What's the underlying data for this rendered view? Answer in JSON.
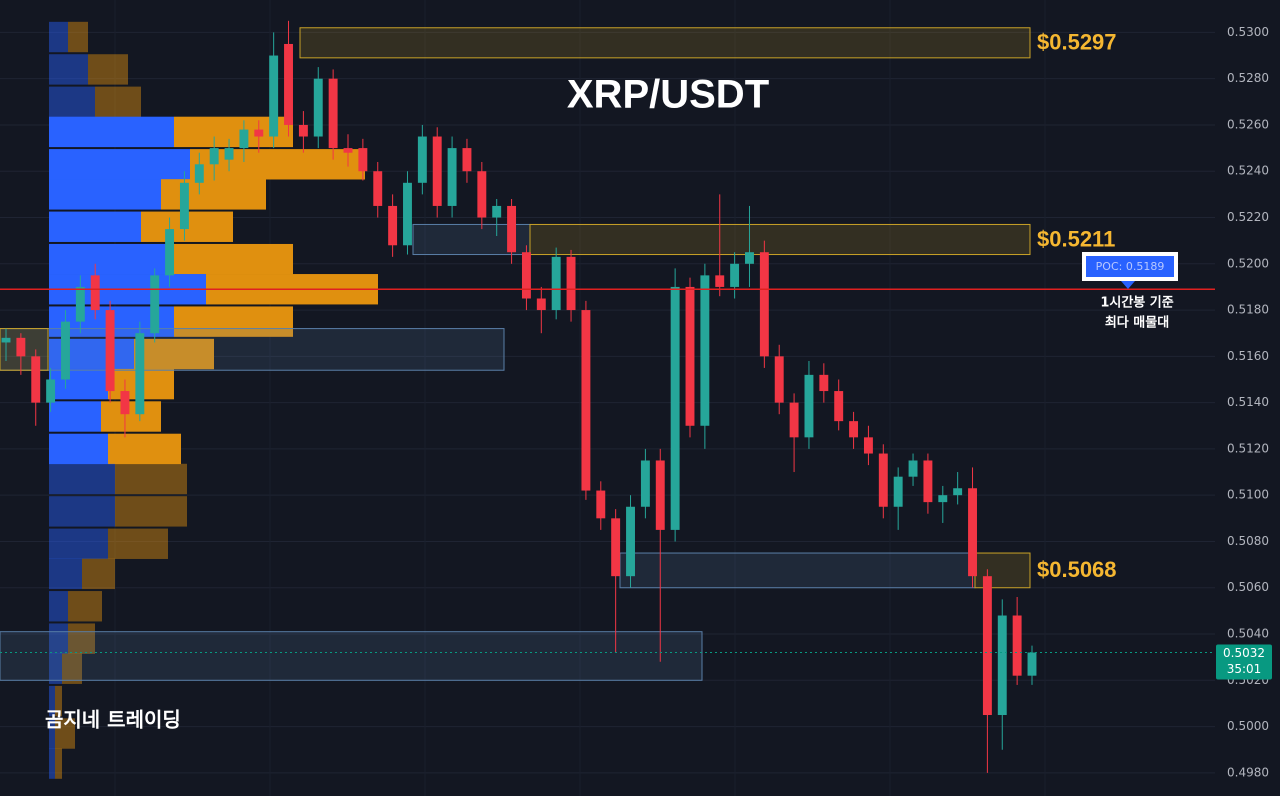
{
  "chart_data": {
    "type": "candlestick",
    "title": "XRP/USDT",
    "watermark": "곰지네 트레이딩",
    "up_color": "#26a69a",
    "down_color": "#f23645",
    "ylim": [
      0.497,
      0.5314
    ],
    "yticks": [
      {
        "value": 0.498,
        "label": "0.4980"
      },
      {
        "value": 0.5,
        "label": "0.5000"
      },
      {
        "value": 0.502,
        "label": "0.5020"
      },
      {
        "value": 0.504,
        "label": "0.5040"
      },
      {
        "value": 0.506,
        "label": "0.5060"
      },
      {
        "value": 0.508,
        "label": "0.5080"
      },
      {
        "value": 0.51,
        "label": "0.5100"
      },
      {
        "value": 0.512,
        "label": "0.5120"
      },
      {
        "value": 0.514,
        "label": "0.5140"
      },
      {
        "value": 0.516,
        "label": "0.5160"
      },
      {
        "value": 0.518,
        "label": "0.5180"
      },
      {
        "value": 0.52,
        "label": "0.5200"
      },
      {
        "value": 0.522,
        "label": "0.5220"
      },
      {
        "value": 0.524,
        "label": "0.5240"
      },
      {
        "value": 0.526,
        "label": "0.5260"
      },
      {
        "value": 0.528,
        "label": "0.5280"
      },
      {
        "value": 0.53,
        "label": "0.5300"
      }
    ],
    "grid": true,
    "candles": [
      [
        0.5166,
        0.5172,
        0.5158,
        0.5168
      ],
      [
        0.5168,
        0.517,
        0.5152,
        0.516
      ],
      [
        0.516,
        0.5163,
        0.513,
        0.514
      ],
      [
        0.514,
        0.5155,
        0.5136,
        0.515
      ],
      [
        0.515,
        0.518,
        0.5146,
        0.5175
      ],
      [
        0.5175,
        0.5195,
        0.517,
        0.519
      ],
      [
        0.5195,
        0.52,
        0.5176,
        0.518
      ],
      [
        0.518,
        0.5184,
        0.514,
        0.5145
      ],
      [
        0.5145,
        0.515,
        0.5125,
        0.5135
      ],
      [
        0.5135,
        0.5175,
        0.5132,
        0.517
      ],
      [
        0.517,
        0.5198,
        0.5166,
        0.5195
      ],
      [
        0.5195,
        0.522,
        0.519,
        0.5215
      ],
      [
        0.5215,
        0.524,
        0.521,
        0.5235
      ],
      [
        0.5235,
        0.5248,
        0.523,
        0.5243
      ],
      [
        0.5243,
        0.5255,
        0.5236,
        0.525
      ],
      [
        0.5245,
        0.5254,
        0.524,
        0.525
      ],
      [
        0.525,
        0.5262,
        0.5244,
        0.5258
      ],
      [
        0.5258,
        0.5262,
        0.5248,
        0.5255
      ],
      [
        0.5255,
        0.53,
        0.525,
        0.529
      ],
      [
        0.5295,
        0.5305,
        0.5255,
        0.526
      ],
      [
        0.526,
        0.5266,
        0.5248,
        0.5255
      ],
      [
        0.5255,
        0.5285,
        0.525,
        0.528
      ],
      [
        0.528,
        0.5284,
        0.5245,
        0.525
      ],
      [
        0.525,
        0.5256,
        0.5242,
        0.5248
      ],
      [
        0.525,
        0.5254,
        0.5236,
        0.524
      ],
      [
        0.524,
        0.5244,
        0.522,
        0.5225
      ],
      [
        0.5225,
        0.523,
        0.5203,
        0.5208
      ],
      [
        0.5208,
        0.524,
        0.5204,
        0.5235
      ],
      [
        0.5235,
        0.526,
        0.523,
        0.5255
      ],
      [
        0.5255,
        0.5259,
        0.522,
        0.5225
      ],
      [
        0.5225,
        0.5255,
        0.522,
        0.525
      ],
      [
        0.525,
        0.5254,
        0.5235,
        0.524
      ],
      [
        0.524,
        0.5244,
        0.5215,
        0.522
      ],
      [
        0.522,
        0.5228,
        0.5212,
        0.5225
      ],
      [
        0.5225,
        0.5228,
        0.52,
        0.5205
      ],
      [
        0.5205,
        0.5208,
        0.518,
        0.5185
      ],
      [
        0.5185,
        0.519,
        0.517,
        0.518
      ],
      [
        0.518,
        0.5207,
        0.5176,
        0.5203
      ],
      [
        0.5203,
        0.5206,
        0.5175,
        0.518
      ],
      [
        0.518,
        0.5184,
        0.5098,
        0.5102
      ],
      [
        0.5102,
        0.5106,
        0.5085,
        0.509
      ],
      [
        0.509,
        0.5094,
        0.5032,
        0.5065
      ],
      [
        0.5065,
        0.51,
        0.506,
        0.5095
      ],
      [
        0.5095,
        0.512,
        0.509,
        0.5115
      ],
      [
        0.5115,
        0.512,
        0.5028,
        0.5085
      ],
      [
        0.5085,
        0.5198,
        0.508,
        0.519
      ],
      [
        0.519,
        0.5194,
        0.5125,
        0.513
      ],
      [
        0.513,
        0.52,
        0.512,
        0.5195
      ],
      [
        0.5195,
        0.523,
        0.5186,
        0.519
      ],
      [
        0.519,
        0.5205,
        0.5185,
        0.52
      ],
      [
        0.52,
        0.5225,
        0.519,
        0.5205
      ],
      [
        0.5205,
        0.521,
        0.5155,
        0.516
      ],
      [
        0.516,
        0.5165,
        0.5135,
        0.514
      ],
      [
        0.514,
        0.5144,
        0.511,
        0.5125
      ],
      [
        0.5125,
        0.5158,
        0.512,
        0.5152
      ],
      [
        0.5152,
        0.5157,
        0.514,
        0.5145
      ],
      [
        0.5145,
        0.515,
        0.5128,
        0.5132
      ],
      [
        0.5132,
        0.5136,
        0.512,
        0.5125
      ],
      [
        0.5125,
        0.513,
        0.5113,
        0.5118
      ],
      [
        0.5118,
        0.5122,
        0.509,
        0.5095
      ],
      [
        0.5095,
        0.5112,
        0.5085,
        0.5108
      ],
      [
        0.5108,
        0.5118,
        0.5104,
        0.5115
      ],
      [
        0.5115,
        0.5118,
        0.5092,
        0.5097
      ],
      [
        0.5097,
        0.5104,
        0.5088,
        0.51
      ],
      [
        0.51,
        0.511,
        0.5096,
        0.5103
      ],
      [
        0.5103,
        0.5112,
        0.506,
        0.5065
      ],
      [
        0.5065,
        0.5068,
        0.498,
        0.5005
      ],
      [
        0.5005,
        0.5055,
        0.499,
        0.5048
      ],
      [
        0.5048,
        0.5056,
        0.5018,
        0.5022
      ],
      [
        0.5022,
        0.5035,
        0.5018,
        0.5032
      ]
    ],
    "volume_profile": {
      "price_levels": [
        0.5298,
        0.5284,
        0.527,
        0.5257,
        0.5243,
        0.523,
        0.5216,
        0.5202,
        0.5189,
        0.5175,
        0.5161,
        0.5148,
        0.5134,
        0.512,
        0.5107,
        0.5093,
        0.5079,
        0.5066,
        0.5052,
        0.5038,
        0.5025,
        0.5011,
        0.4997,
        0.4984
      ],
      "buy": [
        19,
        39,
        46,
        125,
        141,
        112,
        92,
        125,
        157,
        125,
        85,
        59,
        52,
        59,
        66,
        66,
        59,
        33,
        19,
        19,
        13,
        6,
        6,
        6
      ],
      "sell": [
        20,
        40,
        46,
        119,
        175,
        105,
        92,
        119,
        172,
        119,
        80,
        66,
        60,
        73,
        72,
        72,
        60,
        33,
        34,
        27,
        20,
        7,
        20,
        7
      ],
      "buy_color": "#2962ff",
      "sell_color": "#e0900f",
      "value_area": [
        0.512,
        0.5257
      ]
    },
    "zones": [
      {
        "low": 0.5289,
        "high": 0.5302,
        "color": "#c9a227",
        "label": "$0.5297"
      },
      {
        "low": 0.5204,
        "high": 0.5217,
        "color": "#5a7fa8"
      },
      {
        "low": 0.5204,
        "high": 0.5217,
        "color": "#c9a227",
        "label": "$0.5211"
      },
      {
        "low": 0.5154,
        "high": 0.5172,
        "color": "#5a7fa8"
      },
      {
        "low": 0.5154,
        "high": 0.5172,
        "color": "#c9a227"
      },
      {
        "low": 0.506,
        "high": 0.5075,
        "color": "#5a7fa8"
      },
      {
        "low": 0.506,
        "high": 0.5075,
        "color": "#c9a227",
        "label": "$0.5068"
      },
      {
        "low": 0.502,
        "high": 0.5041,
        "color": "#5a7fa8"
      }
    ],
    "poc": {
      "value": 0.5189,
      "label": "POC: 0.5189",
      "color": "#e02020",
      "note": [
        "1시간봉 기준",
        "최다 매물대"
      ]
    },
    "last_price": {
      "value": 0.5032,
      "countdown": "35:01",
      "color": "#089981"
    }
  }
}
